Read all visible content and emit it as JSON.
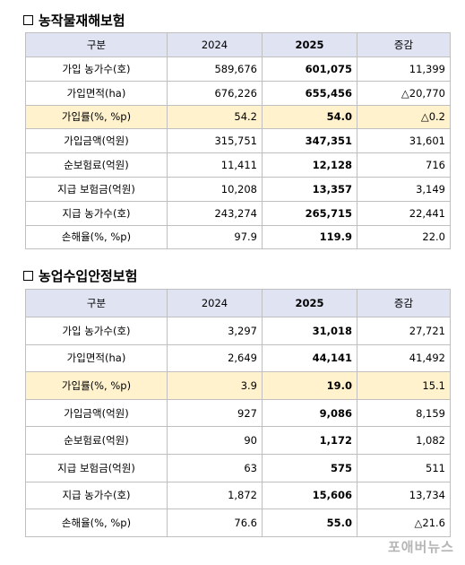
{
  "sections": [
    {
      "title": "농작물재해보험",
      "headers": [
        "구분",
        "2024",
        "2025",
        "증감"
      ],
      "rows": [
        {
          "label": "가입 농가수(호)",
          "y2024": "589,676",
          "y2025": "601,075",
          "change": "11,399",
          "highlight": false
        },
        {
          "label": "가입면적(ha)",
          "y2024": "676,226",
          "y2025": "655,456",
          "change": "△20,770",
          "highlight": false
        },
        {
          "label": "가입률(%, %p)",
          "y2024": "54.2",
          "y2025": "54.0",
          "change": "△0.2",
          "highlight": true
        },
        {
          "label": "가입금액(억원)",
          "y2024": "315,751",
          "y2025": "347,351",
          "change": "31,601",
          "highlight": false
        },
        {
          "label": "순보험료(억원)",
          "y2024": "11,411",
          "y2025": "12,128",
          "change": "716",
          "highlight": false
        },
        {
          "label": "지급 보험금(억원)",
          "y2024": "10,208",
          "y2025": "13,357",
          "change": "3,149",
          "highlight": false
        },
        {
          "label": "지급 농가수(호)",
          "y2024": "243,274",
          "y2025": "265,715",
          "change": "22,441",
          "highlight": false
        },
        {
          "label": "손해율(%, %p)",
          "y2024": "97.9",
          "y2025": "119.9",
          "change": "22.0",
          "highlight": false
        }
      ]
    },
    {
      "title": "농업수입안정보험",
      "headers": [
        "구분",
        "2024",
        "2025",
        "증감"
      ],
      "rows": [
        {
          "label": "가입 농가수(호)",
          "y2024": "3,297",
          "y2025": "31,018",
          "change": "27,721",
          "highlight": false
        },
        {
          "label": "가입면적(ha)",
          "y2024": "2,649",
          "y2025": "44,141",
          "change": "41,492",
          "highlight": false
        },
        {
          "label": "가입률(%, %p)",
          "y2024": "3.9",
          "y2025": "19.0",
          "change": "15.1",
          "highlight": true
        },
        {
          "label": "가입금액(억원)",
          "y2024": "927",
          "y2025": "9,086",
          "change": "8,159",
          "highlight": false
        },
        {
          "label": "순보험료(억원)",
          "y2024": "90",
          "y2025": "1,172",
          "change": "1,082",
          "highlight": false
        },
        {
          "label": "지급 보험금(억원)",
          "y2024": "63",
          "y2025": "575",
          "change": "511",
          "highlight": false
        },
        {
          "label": "지급 농가수(호)",
          "y2024": "1,872",
          "y2025": "15,606",
          "change": "13,734",
          "highlight": false
        },
        {
          "label": "손해율(%, %p)",
          "y2024": "76.6",
          "y2025": "55.0",
          "change": "△21.6",
          "highlight": false
        }
      ]
    }
  ],
  "watermark": "포애버뉴스"
}
